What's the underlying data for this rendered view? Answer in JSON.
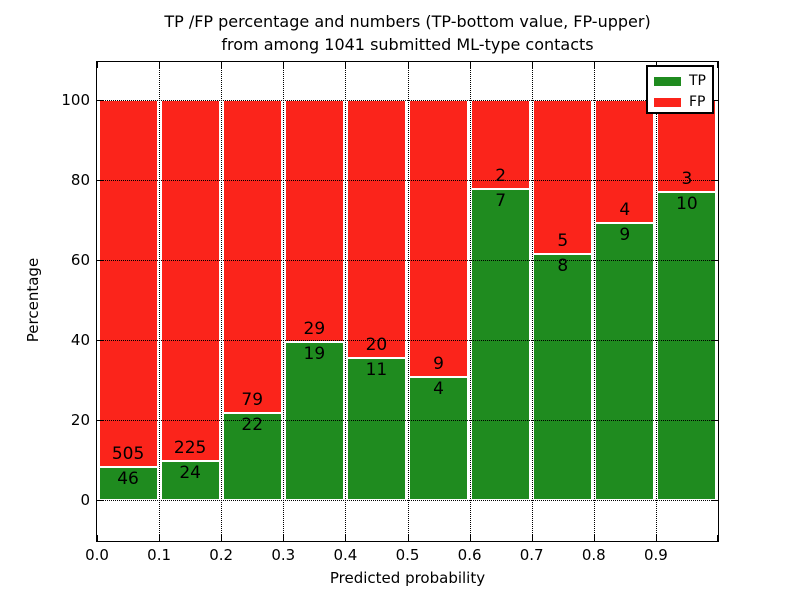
{
  "title": {
    "line1": "TP /FP percentage and numbers (TP-bottom value, FP-upper)",
    "line2": "from among 1041 submitted ML-type contacts"
  },
  "axes": {
    "xlabel": "Predicted probability",
    "ylabel": "Percentage",
    "xtick_labels": [
      "0.0",
      "0.1",
      "0.2",
      "0.3",
      "0.4",
      "0.5",
      "0.6",
      "0.7",
      "0.8",
      "0.9"
    ],
    "ytick_labels": [
      "0",
      "20",
      "40",
      "60",
      "80",
      "100"
    ],
    "ytick_values": [
      0,
      20,
      40,
      60,
      80,
      100
    ]
  },
  "legend": {
    "position": "upper right",
    "entries": [
      {
        "label": "TP",
        "color": "#1f8b1f"
      },
      {
        "label": "FP",
        "color": "#fb241b"
      }
    ]
  },
  "colors": {
    "tp": "#1f8b1f",
    "fp": "#fb241b",
    "background": "#ffffff",
    "text": "#000000",
    "grid": "#000000",
    "bar_edge": "#ffffff"
  },
  "chart_data": {
    "type": "bar",
    "stacked": true,
    "normalized": "each bin stacked to 100%",
    "title": "TP /FP percentage and numbers (TP-bottom value, FP-upper) from among 1041 submitted ML-type contacts",
    "xlabel": "Predicted probability",
    "ylabel": "Percentage",
    "xlim": [
      0.0,
      1.0
    ],
    "ylim": [
      -10,
      110
    ],
    "grid": true,
    "grid_style": "dotted",
    "legend_position": "upper right",
    "bin_edges": [
      0.0,
      0.1,
      0.2,
      0.3,
      0.4,
      0.5,
      0.6,
      0.7,
      0.8,
      0.9,
      1.0
    ],
    "categories": [
      "0.0-0.1",
      "0.1-0.2",
      "0.2-0.3",
      "0.3-0.4",
      "0.4-0.5",
      "0.5-0.6",
      "0.6-0.7",
      "0.7-0.8",
      "0.8-0.9",
      "0.9-1.0"
    ],
    "series": [
      {
        "name": "TP",
        "color": "#1f8b1f",
        "counts": [
          46,
          24,
          22,
          19,
          11,
          4,
          7,
          8,
          9,
          10
        ]
      },
      {
        "name": "FP",
        "color": "#fb241b",
        "counts": [
          505,
          225,
          79,
          29,
          20,
          9,
          2,
          5,
          4,
          3
        ]
      }
    ],
    "tp_percent_of_bin": [
      8.35,
      9.64,
      21.78,
      39.58,
      35.48,
      30.77,
      77.78,
      61.54,
      69.23,
      76.92
    ],
    "total_contacts": 1041
  }
}
